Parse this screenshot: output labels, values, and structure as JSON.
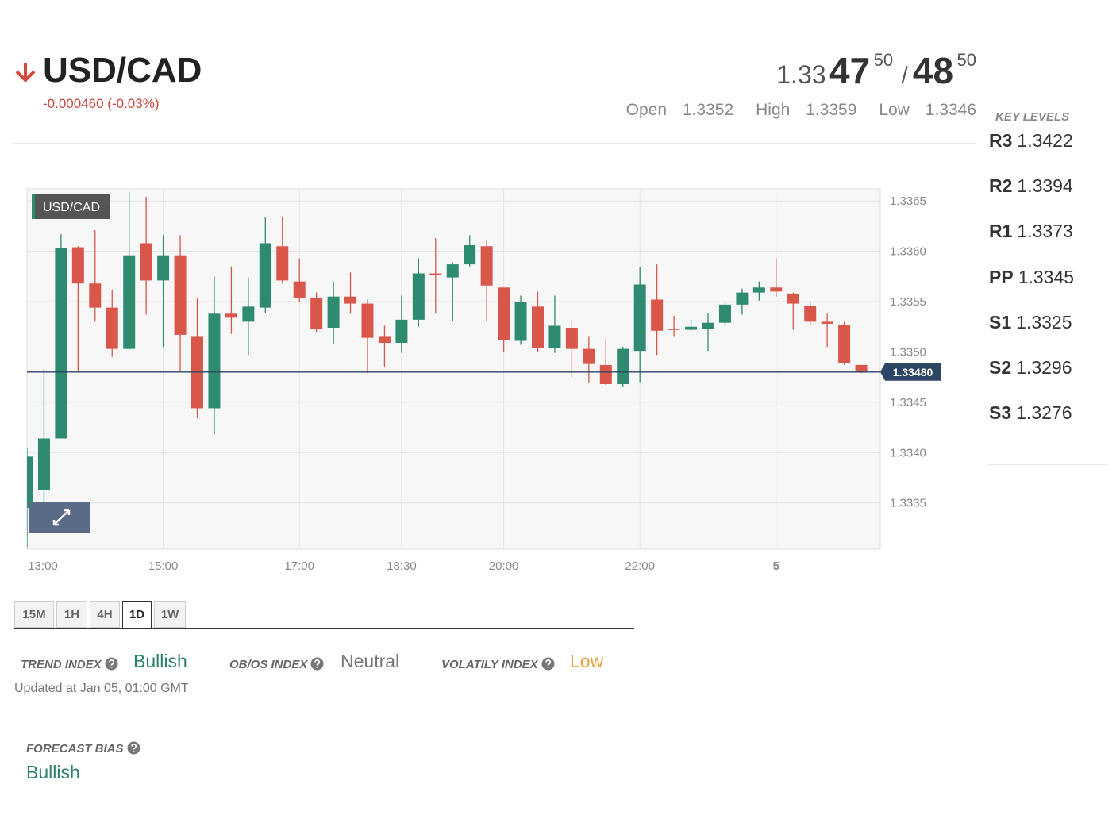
{
  "header": {
    "symbol": "USD/CAD",
    "change": "-0.000460 (-0.03%)",
    "quote": {
      "base": "1.33",
      "bid_pips": "47",
      "bid_fraction": "50",
      "separator": "/",
      "ask_pips": "48",
      "ask_fraction": "50"
    },
    "stats": [
      {
        "label": "Open",
        "value": "1.3352"
      },
      {
        "label": "High",
        "value": "1.3359"
      },
      {
        "label": "Low",
        "value": "1.3346"
      }
    ]
  },
  "key_levels": {
    "title": "KEY LEVELS",
    "levels": [
      {
        "label": "R3",
        "value": "1.3422"
      },
      {
        "label": "R2",
        "value": "1.3394"
      },
      {
        "label": "R1",
        "value": "1.3373"
      },
      {
        "label": "PP",
        "value": "1.3345"
      },
      {
        "label": "S1",
        "value": "1.3325"
      },
      {
        "label": "S2",
        "value": "1.3296"
      },
      {
        "label": "S3",
        "value": "1.3276"
      }
    ]
  },
  "chart_data": {
    "type": "candlestick",
    "title": "USD/CAD",
    "up_color": "#2f8a72",
    "down_color": "#d9574a",
    "grid": true,
    "categories": [
      "13:00",
      null,
      null,
      null,
      null,
      null,
      null,
      null,
      "15:00",
      null,
      null,
      null,
      null,
      null,
      null,
      null,
      "17:00",
      null,
      null,
      null,
      null,
      null,
      "18:30",
      null,
      null,
      null,
      null,
      null,
      "20:00",
      null,
      null,
      null,
      null,
      null,
      null,
      null,
      "22:00",
      null,
      null,
      null,
      null,
      null,
      null,
      null,
      "5",
      null,
      null,
      null,
      null,
      null
    ],
    "open": [
      1.33345,
      1.33363,
      1.33414,
      1.33604,
      1.33568,
      1.33544,
      1.33503,
      1.33608,
      1.33571,
      1.33596,
      1.33515,
      1.33444,
      1.33538,
      1.3353,
      1.33544,
      1.33605,
      1.3357,
      1.33554,
      1.33524,
      1.33555,
      1.33548,
      1.33515,
      1.33509,
      1.33532,
      1.33578,
      1.33574,
      1.33587,
      1.33605,
      1.33564,
      1.33511,
      1.33545,
      1.33504,
      1.33524,
      1.33503,
      1.33487,
      1.33468,
      1.33501,
      1.33552,
      1.33523,
      1.33522,
      1.33523,
      1.33529,
      1.33547,
      1.33559,
      1.33564,
      1.33558,
      1.33546,
      1.3353,
      1.33527,
      1.33487
    ],
    "high": [
      1.33404,
      1.33483,
      1.33617,
      1.33605,
      1.33621,
      1.33562,
      1.33659,
      1.33654,
      1.33616,
      1.33616,
      1.33554,
      1.33575,
      1.33585,
      1.33574,
      1.33634,
      1.33634,
      1.33593,
      1.33559,
      1.3357,
      1.33579,
      1.33552,
      1.33526,
      1.33556,
      1.33593,
      1.33613,
      1.33589,
      1.33616,
      1.33611,
      1.33564,
      1.33556,
      1.3356,
      1.33556,
      1.33531,
      1.33515,
      1.33514,
      1.33505,
      1.33584,
      1.33587,
      1.33536,
      1.33532,
      1.33539,
      1.3355,
      1.33563,
      1.3357,
      1.33593,
      1.33559,
      1.33549,
      1.33538,
      1.3353,
      1.33487
    ],
    "low": [
      1.33306,
      1.33339,
      1.33414,
      1.3348,
      1.3353,
      1.33495,
      1.33502,
      1.33537,
      1.33505,
      1.33481,
      1.33434,
      1.33418,
      1.33518,
      1.33497,
      1.33539,
      1.33568,
      1.3355,
      1.3352,
      1.33508,
      1.33538,
      1.33479,
      1.33485,
      1.33499,
      1.33525,
      1.33538,
      1.33531,
      1.33585,
      1.3353,
      1.335,
      1.33507,
      1.335,
      1.33499,
      1.33475,
      1.33469,
      1.33467,
      1.33465,
      1.3347,
      1.33497,
      1.33515,
      1.33521,
      1.33501,
      1.33526,
      1.33537,
      1.33551,
      1.33555,
      1.33522,
      1.33527,
      1.33505,
      1.33487,
      1.33479
    ],
    "close": [
      1.33396,
      1.33414,
      1.33603,
      1.33568,
      1.33544,
      1.33503,
      1.33596,
      1.33571,
      1.33596,
      1.33517,
      1.33444,
      1.33538,
      1.33534,
      1.33545,
      1.33608,
      1.33571,
      1.33554,
      1.33523,
      1.33555,
      1.33548,
      1.33514,
      1.33509,
      1.33532,
      1.33578,
      1.33577,
      1.33587,
      1.33606,
      1.33566,
      1.33512,
      1.3355,
      1.33504,
      1.33526,
      1.33503,
      1.33488,
      1.33468,
      1.33503,
      1.33567,
      1.33521,
      1.33522,
      1.33525,
      1.33529,
      1.33547,
      1.33559,
      1.33564,
      1.3356,
      1.33548,
      1.3353,
      1.33528,
      1.33489,
      1.3348
    ],
    "ylim": [
      1.33304,
      1.33662
    ],
    "yticks": [
      1.3335,
      {
        "value": 1.334,
        "label": "1.3340"
      },
      1.3345,
      {
        "value": 1.335,
        "label": "1.3350"
      },
      1.3355,
      {
        "value": 1.336,
        "label": "1.3360"
      },
      1.3365
    ],
    "last": {
      "value": 1.3348,
      "label": "1.33480"
    }
  },
  "timeframes": {
    "options": [
      "15M",
      "1H",
      "4H",
      "1D",
      "1W"
    ],
    "active": "1D"
  },
  "indices": [
    {
      "label": "TREND INDEX",
      "value": "Bullish"
    },
    {
      "label": "OB/OS INDEX",
      "value": "Neutral"
    },
    {
      "label": "VOLATILY INDEX",
      "value": "Low"
    }
  ],
  "updated": "Updated at Jan 05, 01:00 GMT",
  "forecast": {
    "label": "FORECAST BIAS",
    "value": "Bullish"
  }
}
